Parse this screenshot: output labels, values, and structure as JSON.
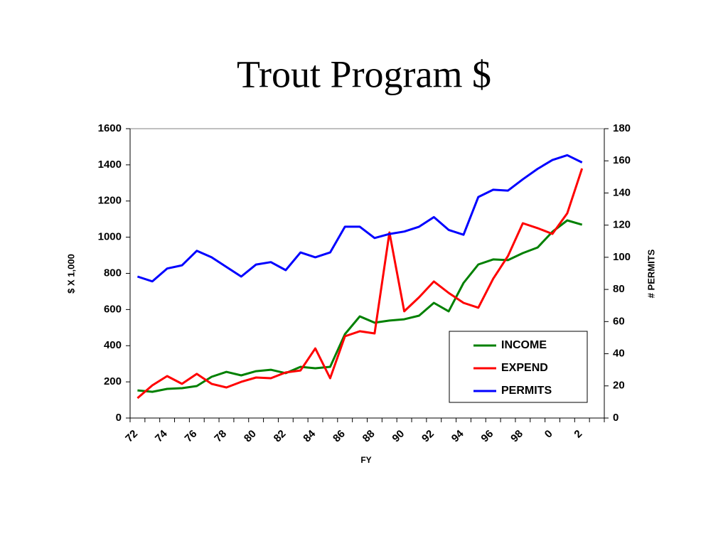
{
  "chart_data": {
    "type": "line",
    "title": "Trout Program $",
    "xlabel": "FY",
    "ylabel": "$ X 1,000",
    "y2label": "# PERMITS",
    "categories": [
      "72",
      null,
      "74",
      null,
      "76",
      null,
      "78",
      null,
      "80",
      null,
      "82",
      null,
      "84",
      null,
      "86",
      null,
      "88",
      null,
      "90",
      null,
      "92",
      null,
      "94",
      null,
      "96",
      null,
      "98",
      null,
      "0",
      null,
      "2",
      null
    ],
    "series": [
      {
        "name": "INCOME",
        "color": "#008000",
        "values": [
          153,
          145,
          161,
          165,
          177,
          228,
          255,
          236,
          259,
          267,
          248,
          283,
          275,
          283,
          464,
          562,
          527,
          539,
          546,
          566,
          637,
          590,
          747,
          849,
          877,
          873,
          912,
          943,
          1030,
          1093,
          1069,
          null
        ]
      },
      {
        "name": "EXPEND",
        "color": "#ff0000",
        "values": [
          110,
          181,
          232,
          189,
          244,
          189,
          169,
          200,
          224,
          220,
          252,
          263,
          385,
          220,
          452,
          480,
          468,
          1026,
          590,
          668,
          755,
          692,
          637,
          610,
          770,
          896,
          1077,
          1050,
          1018,
          1132,
          1380,
          null
        ]
      },
      {
        "name": "PERMITS",
        "color": "#0000ff",
        "axis": "y2",
        "values": [
          88,
          85,
          93,
          95,
          104,
          100,
          94,
          88,
          95.5,
          97,
          92,
          103,
          100,
          103,
          119,
          119,
          112,
          114.5,
          116,
          119,
          125,
          117,
          114,
          137.5,
          142,
          141.5,
          148.5,
          155,
          160.5,
          163.5,
          159,
          null
        ]
      }
    ],
    "ylim": [
      0,
      1600
    ],
    "yticks": [
      0,
      200,
      400,
      600,
      800,
      1000,
      1200,
      1400,
      1600
    ],
    "y2lim": [
      0,
      180
    ],
    "y2ticks": [
      0,
      20,
      40,
      60,
      80,
      100,
      120,
      140,
      160,
      180
    ],
    "legend": "lower right"
  }
}
